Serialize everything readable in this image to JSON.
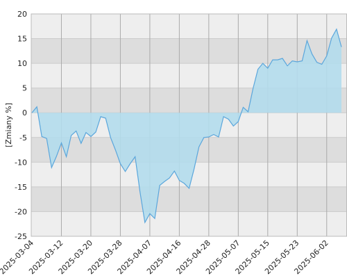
{
  "chart_data": {
    "type": "area",
    "y_label": "[Zmiany %]",
    "categories": [
      "2025-03-04",
      null,
      null,
      null,
      null,
      null,
      "2025-03-12",
      null,
      null,
      null,
      null,
      null,
      "2025-03-20",
      null,
      null,
      null,
      null,
      null,
      "2025-03-28",
      null,
      null,
      null,
      null,
      null,
      "2025-04-07",
      null,
      null,
      null,
      null,
      null,
      "2025-04-16",
      null,
      null,
      null,
      null,
      null,
      "2025-04-28",
      null,
      null,
      null,
      null,
      null,
      "2025-05-07",
      null,
      null,
      null,
      null,
      null,
      "2025-05-15",
      null,
      null,
      null,
      null,
      null,
      "2025-05-23",
      null,
      null,
      null,
      null,
      null,
      "2025-06-02",
      null,
      null,
      null
    ],
    "series": [
      {
        "color": "#5aa6dc",
        "fill": "#b3dcec",
        "values": [
          0,
          1.2,
          -4.8,
          -5.2,
          -11.1,
          -8.8,
          -6.1,
          -8.9,
          -4.6,
          -3.7,
          -6.2,
          -4.0,
          -4.8,
          -3.9,
          -0.8,
          -1.1,
          -5.0,
          -7.5,
          -10.3,
          -11.9,
          -10.3,
          -8.9,
          -16.0,
          -22.2,
          -20.4,
          -21.4,
          -14.7,
          -13.9,
          -13.2,
          -11.8,
          -13.7,
          -14.3,
          -15.3,
          -11.4,
          -6.9,
          -5.0,
          -4.9,
          -4.4,
          -4.9,
          -0.8,
          -1.3,
          -2.7,
          -1.8,
          1.1,
          0.2,
          4.9,
          8.8,
          10.0,
          9.0,
          10.7,
          10.7,
          11.0,
          9.5,
          10.5,
          10.3,
          10.5,
          14.6,
          11.9,
          10.2,
          9.8,
          11.5,
          15.1,
          16.9,
          13.3
        ]
      }
    ],
    "ylim": [
      -25,
      20
    ],
    "yticks": [
      -25,
      -20,
      -15,
      -10,
      -5,
      0,
      5,
      10,
      15,
      20
    ],
    "grid": true
  }
}
